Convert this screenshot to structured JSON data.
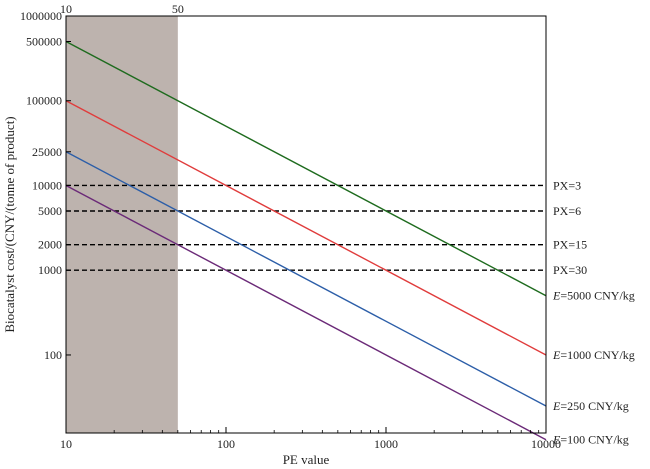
{
  "chart_data": {
    "type": "line",
    "xlabel": "PE value",
    "ylabel": "Biocatalyst cost/(CNY/(tonne of product)",
    "xscale": "log",
    "yscale": "log",
    "xlim": [
      10,
      10000
    ],
    "ylim": [
      12,
      1000000
    ],
    "x_ticks": [
      {
        "value": 10,
        "label": "10"
      },
      {
        "value": 100,
        "label": "100"
      },
      {
        "value": 1000,
        "label": "1000"
      },
      {
        "value": 10000,
        "label": "10000"
      }
    ],
    "y_ticks": [
      {
        "value": 100,
        "label": "100"
      },
      {
        "value": 1000,
        "label": "1000"
      },
      {
        "value": 2000,
        "label": "2000"
      },
      {
        "value": 5000,
        "label": "5000"
      },
      {
        "value": 10000,
        "label": "10000"
      },
      {
        "value": 25000,
        "label": "25000"
      },
      {
        "value": 100000,
        "label": "100000"
      },
      {
        "value": 500000,
        "label": "500000"
      },
      {
        "value": 1000000,
        "label": "1000000"
      }
    ],
    "top_ticks": [
      {
        "value": 10,
        "label": "10"
      },
      {
        "value": 50,
        "label": "50"
      }
    ],
    "shaded_region": {
      "x": [
        10,
        50
      ],
      "color": "#bdb3ae"
    },
    "series": [
      {
        "label_prefix": "E",
        "label_suffix": "=5000 CNY/kg",
        "color": "#1e6b1e",
        "x": [
          10,
          10000
        ],
        "values": [
          500000,
          500
        ]
      },
      {
        "label_prefix": "E",
        "label_suffix": "=1000 CNY/kg",
        "color": "#e03c3c",
        "x": [
          10,
          10000
        ],
        "values": [
          100000,
          100
        ]
      },
      {
        "label_prefix": "E",
        "label_suffix": "=250 CNY/kg",
        "color": "#2c5ea8",
        "x": [
          10,
          10000
        ],
        "values": [
          25000,
          25
        ]
      },
      {
        "label_prefix": "E",
        "label_suffix": "=100 CNY/kg",
        "color": "#6b2a78",
        "x": [
          10,
          10000
        ],
        "values": [
          10000,
          10
        ]
      }
    ],
    "reference_lines": [
      {
        "label": "PX=3",
        "y": 10000
      },
      {
        "label": "PX=6",
        "y": 5000
      },
      {
        "label": "PX=15",
        "y": 2000
      },
      {
        "label": "PX=30",
        "y": 1000
      }
    ],
    "grid": false,
    "legend": "right-labels"
  }
}
